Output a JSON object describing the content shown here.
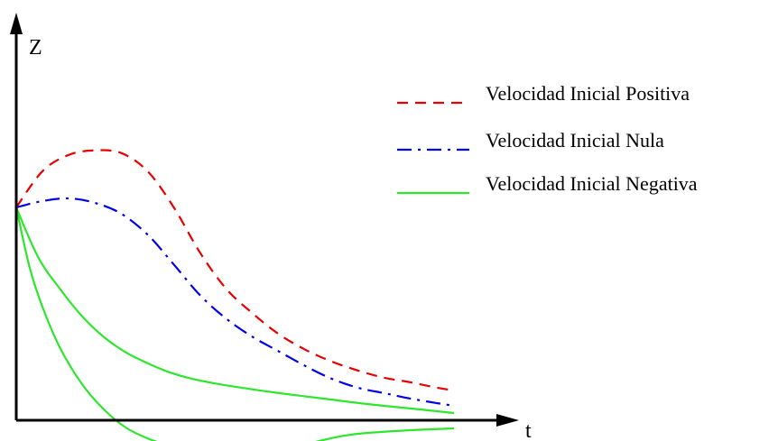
{
  "chart_data": {
    "type": "line",
    "xlabel": "t",
    "ylabel": "Z",
    "xlim": [
      0,
      10
    ],
    "ylim": [
      -0.4,
      4.5
    ],
    "grid": false,
    "legend_position": "top-right",
    "series": [
      {
        "name": "Velocidad Inicial Positiva",
        "color": "#e60000",
        "dash": "dashed",
        "x": [
          0,
          0.6,
          1.2,
          1.8,
          2.4,
          3.0,
          3.6,
          4.2,
          4.8,
          5.4,
          6.0,
          6.6,
          7.2,
          7.8,
          8.4,
          9.0,
          9.6,
          10.0
        ],
        "y": [
          2.35,
          2.75,
          2.93,
          2.98,
          2.95,
          2.75,
          2.35,
          1.85,
          1.45,
          1.18,
          0.95,
          0.78,
          0.65,
          0.55,
          0.47,
          0.42,
          0.36,
          0.33
        ]
      },
      {
        "name": "Velocidad Inicial Nula",
        "color": "#0000e6",
        "dash": "dashdot",
        "x": [
          0,
          0.6,
          1.2,
          1.8,
          2.4,
          3.0,
          3.6,
          4.2,
          4.8,
          5.4,
          6.0,
          6.6,
          7.2,
          7.8,
          8.4,
          9.0,
          9.6,
          10.0
        ],
        "y": [
          2.35,
          2.42,
          2.45,
          2.4,
          2.28,
          2.05,
          1.72,
          1.38,
          1.12,
          0.92,
          0.76,
          0.6,
          0.46,
          0.36,
          0.3,
          0.24,
          0.19,
          0.16
        ]
      },
      {
        "name": "Velocidad Inicial Negativa",
        "color": "#2ee62e",
        "dash": "solid",
        "x": [
          0,
          0.5,
          1.0,
          1.5,
          2.0,
          2.5,
          3.0,
          3.5,
          4.0,
          4.5,
          5.0,
          6.0,
          7.0,
          8.0,
          9.0,
          10.0
        ],
        "y": [
          2.35,
          1.8,
          1.45,
          1.15,
          0.92,
          0.75,
          0.63,
          0.53,
          0.46,
          0.41,
          0.37,
          0.3,
          0.24,
          0.18,
          0.13,
          0.08
        ]
      },
      {
        "color": "#2ee62e",
        "dash": "solid",
        "x": [
          0,
          0.3,
          0.6,
          1.0,
          1.5,
          2.0,
          2.5,
          3.0,
          3.5,
          4.0,
          4.5,
          5.0,
          5.5,
          6.0,
          6.5,
          7.0,
          7.5,
          8.0,
          9.0,
          10.0
        ],
        "y": [
          2.35,
          1.7,
          1.25,
          0.8,
          0.4,
          0.12,
          -0.08,
          -0.2,
          -0.28,
          -0.33,
          -0.36,
          -0.37,
          -0.36,
          -0.33,
          -0.28,
          -0.22,
          -0.17,
          -0.14,
          -0.11,
          -0.09
        ]
      }
    ]
  }
}
